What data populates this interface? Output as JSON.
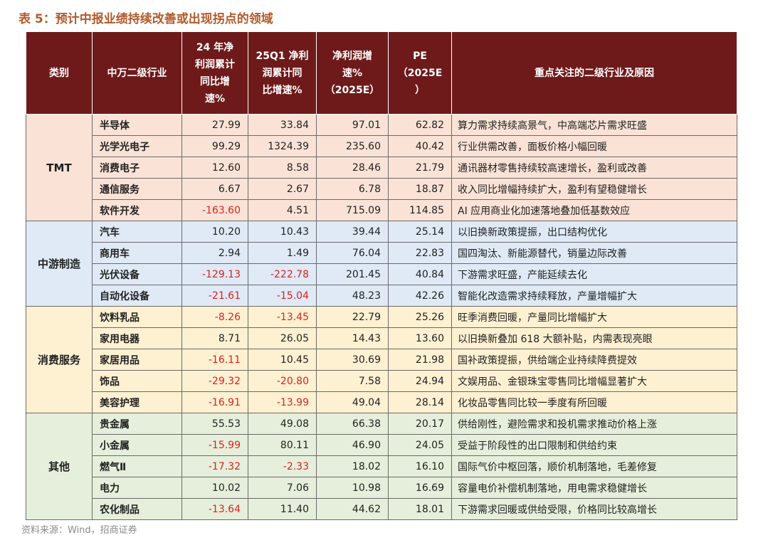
{
  "title": "表 5：预计中报业绩持续改善或出现拐点的领域",
  "headers": {
    "category": "类别",
    "industry": "中万二级行业",
    "np24": [
      "24 年净",
      "利润累计",
      "同比增",
      "速%"
    ],
    "q1": [
      "25Q1 净利",
      "润累计同",
      "比增速%"
    ],
    "np25": [
      "净利润增",
      "速%",
      "（2025E）"
    ],
    "pe": [
      "PE",
      "（2025E",
      "）"
    ],
    "reason": "重点关注的二级行业及原因"
  },
  "groups": [
    {
      "name": "TMT",
      "rows": [
        {
          "industry": "半导体",
          "np24": "27.99",
          "q1": "33.84",
          "np25": "97.01",
          "pe": "62.82",
          "reason": "算力需求持续高景气，中高端芯片需求旺盛"
        },
        {
          "industry": "光学光电子",
          "np24": "99.29",
          "q1": "1324.39",
          "np25": "235.60",
          "pe": "40.42",
          "reason": "行业供需改善，面板价格小幅回暖"
        },
        {
          "industry": "消费电子",
          "np24": "12.60",
          "q1": "8.58",
          "np25": "28.46",
          "pe": "21.79",
          "reason": "通讯器材零售持续较高速增长，盈利或改善"
        },
        {
          "industry": "通信服务",
          "np24": "6.67",
          "q1": "2.67",
          "np25": "6.78",
          "pe": "18.87",
          "reason": "收入同比增幅持续扩大，盈利有望稳健增长"
        },
        {
          "industry": "软件开发",
          "np24": "-163.60",
          "q1": "4.51",
          "np25": "715.09",
          "pe": "114.85",
          "reason": "AI 应用商业化加速落地叠加低基数效应"
        }
      ]
    },
    {
      "name": "中游制造",
      "rows": [
        {
          "industry": "汽车",
          "np24": "10.20",
          "q1": "10.43",
          "np25": "39.44",
          "pe": "25.14",
          "reason": "以旧换新政策提振，出口结构优化"
        },
        {
          "industry": "商用车",
          "np24": "2.94",
          "q1": "1.49",
          "np25": "76.04",
          "pe": "22.83",
          "reason": "国四淘汰、新能源替代，销量边际改善"
        },
        {
          "industry": "光伏设备",
          "np24": "-129.13",
          "q1": "-222.78",
          "np25": "201.45",
          "pe": "40.84",
          "reason": "下游需求旺盛，产能延续去化"
        },
        {
          "industry": "自动化设备",
          "np24": "-21.61",
          "q1": "-15.04",
          "np25": "48.23",
          "pe": "42.26",
          "reason": "智能化改造需求持续释放，产量增幅扩大"
        }
      ]
    },
    {
      "name": "消费服务",
      "rows": [
        {
          "industry": "饮料乳品",
          "np24": "-8.26",
          "q1": "-13.45",
          "np25": "22.79",
          "pe": "25.26",
          "reason": "旺季消费回暖，产量同比增幅扩大"
        },
        {
          "industry": "家用电器",
          "np24": "8.71",
          "q1": "26.05",
          "np25": "14.43",
          "pe": "13.60",
          "reason": "以旧换新叠加 618 大额补贴，内需表现亮眼"
        },
        {
          "industry": "家居用品",
          "np24": "-16.11",
          "q1": "10.45",
          "np25": "30.69",
          "pe": "21.98",
          "reason": "国补政策提振，供给端企业持续降费提效"
        },
        {
          "industry": "饰品",
          "np24": "-29.32",
          "q1": "-20.80",
          "np25": "7.58",
          "pe": "24.94",
          "reason": "文娱用品、金银珠宝零售同比增幅显著扩大"
        },
        {
          "industry": "美容护理",
          "np24": "-16.91",
          "q1": "-13.99",
          "np25": "49.04",
          "pe": "28.14",
          "reason": "化妆品零售同比较一季度有所回暖"
        }
      ]
    },
    {
      "name": "其他",
      "rows": [
        {
          "industry": "贵金属",
          "np24": "55.53",
          "q1": "49.08",
          "np25": "66.38",
          "pe": "20.17",
          "reason": "供给刚性，避险需求和投机需求推动价格上涨"
        },
        {
          "industry": "小金属",
          "np24": "-15.99",
          "q1": "80.11",
          "np25": "46.90",
          "pe": "24.05",
          "reason": "受益于阶段性的出口限制和供给约束"
        },
        {
          "industry": "燃气Ⅱ",
          "np24": "-17.32",
          "q1": "-2.33",
          "np25": "18.02",
          "pe": "16.10",
          "reason": "国际气价中枢回落，顺价机制落地，毛差修复"
        },
        {
          "industry": "电力",
          "np24": "10.02",
          "q1": "7.06",
          "np25": "10.98",
          "pe": "16.69",
          "reason": "容量电价补偿机制落地，用电需求稳健增长"
        },
        {
          "industry": "农化制品",
          "np24": "-13.64",
          "q1": "11.40",
          "np25": "44.62",
          "pe": "18.01",
          "reason": "下游需求回暖或供给受限，价格同比较高增长"
        }
      ]
    }
  ],
  "colors": {
    "header_bg": "#6e1a1a",
    "negative": "#e02020",
    "title": "#b35a2b",
    "group_bg": [
      "#fae3d6",
      "#dfeaf6",
      "#fdf1d2",
      "#e6efdb"
    ]
  },
  "source": "资料来源：Wind，招商证券"
}
